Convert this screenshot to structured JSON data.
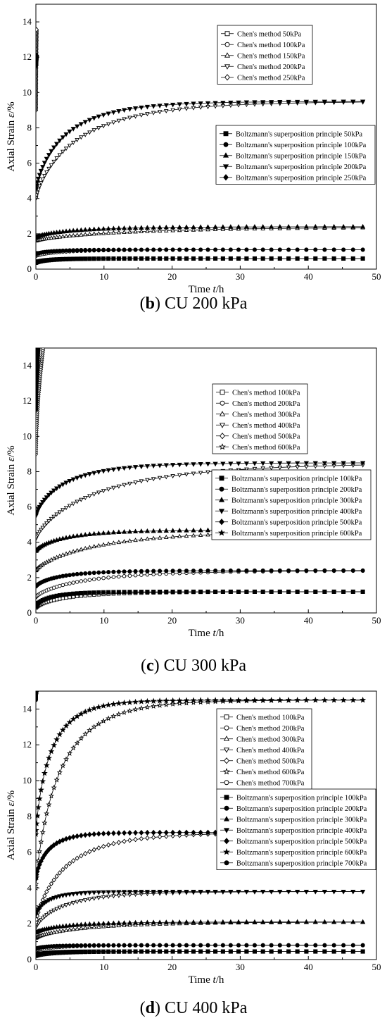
{
  "chart_data": [
    {
      "type": "line",
      "caption_letter": "b",
      "caption_rest": "CU 200 kPa",
      "xlabel_main": "Time ",
      "xlabel_italic": "t",
      "xlabel_unit": "/h",
      "ylabel_main": "Axial Strain  ",
      "ylabel_italic": "ε",
      "ylabel_unit": "/%",
      "xlim": [
        0,
        50
      ],
      "ylim": [
        0,
        15
      ],
      "xticks": [
        0,
        10,
        20,
        30,
        40,
        50
      ],
      "yticks": [
        0,
        2,
        4,
        6,
        8,
        10,
        12,
        14
      ],
      "legend_chen": [
        "Chen's method 50kPa",
        "Chen's method 100kPa",
        "Chen's method 150kPa",
        "Chen's method 200kPa",
        "Chen's method 250kPa"
      ],
      "legend_boltz": [
        "Boltzmann's superposition principle 50kPa",
        "Boltzmann's superposition principle 100kPa",
        "Boltzmann's superposition principle 150kPa",
        "Boltzmann's superposition principle 200kPa",
        "Boltzmann's superposition principle 250kPa"
      ],
      "series": [
        {
          "name": "Chen's method 50kPa",
          "marker": "square-open",
          "final": 0.6,
          "initial": 0.35,
          "rate": 0.5
        },
        {
          "name": "Chen's method 100kPa",
          "marker": "circle-open",
          "final": 1.1,
          "initial": 0.75,
          "rate": 0.35
        },
        {
          "name": "Chen's method 150kPa",
          "marker": "triangle-open",
          "final": 2.4,
          "initial": 1.6,
          "rate": 0.12
        },
        {
          "name": "Chen's method 200kPa",
          "marker": "tridown-open",
          "final": 9.5,
          "initial": 4.0,
          "rate": 0.22
        },
        {
          "name": "Chen's method 250kPa",
          "marker": "diamond-open",
          "final": 12.8,
          "initial": 9.0,
          "rate": 5,
          "ends_at": 0.1
        },
        {
          "name": "Boltzmann's superposition principle 50kPa",
          "marker": "square",
          "final": 0.6,
          "initial": 0.38,
          "rate": 0.6
        },
        {
          "name": "Boltzmann's superposition principle 100kPa",
          "marker": "circle",
          "final": 1.1,
          "initial": 0.85,
          "rate": 0.5
        },
        {
          "name": "Boltzmann's superposition principle 150kPa",
          "marker": "triangle",
          "final": 2.4,
          "initial": 1.8,
          "rate": 0.25
        },
        {
          "name": "Boltzmann's superposition principle 200kPa",
          "marker": "tridown",
          "final": 9.5,
          "initial": 4.5,
          "rate": 0.3
        },
        {
          "name": "Boltzmann's superposition principle 250kPa",
          "marker": "diamond",
          "final": 12.0,
          "initial": 11.5,
          "rate": 5,
          "ends_at": 0.1
        }
      ]
    },
    {
      "type": "line",
      "caption_letter": "c",
      "caption_rest": "CU 300 kPa",
      "xlabel_main": "Time ",
      "xlabel_italic": "t",
      "xlabel_unit": "/h",
      "ylabel_main": "Axial Strain  ",
      "ylabel_italic": "ε",
      "ylabel_unit": "/%",
      "xlim": [
        0,
        50
      ],
      "ylim": [
        0,
        15
      ],
      "xticks": [
        0,
        10,
        20,
        30,
        40,
        50
      ],
      "yticks": [
        0,
        2,
        4,
        6,
        8,
        10,
        12,
        14
      ],
      "legend_chen": [
        "Chen's method 100kPa",
        "Chen's method 200kPa",
        "Chen's method 300kPa",
        "Chen's method 400kPa",
        "Chen's method 500kPa",
        "Chen's method 600kPa"
      ],
      "legend_boltz": [
        "Boltzmann's superposition principle 100kPa",
        "Boltzmann's superposition principle 200kPa",
        "Boltzmann's superposition principle 300kPa",
        "Boltzmann's superposition principle 400kPa",
        "Boltzmann's superposition principle 500kPa",
        "Boltzmann's superposition principle 600kPa"
      ],
      "series": [
        {
          "name": "Chen's method 100kPa",
          "marker": "square-open",
          "final": 1.2,
          "initial": 0.3,
          "rate": 0.3
        },
        {
          "name": "Chen's method 200kPa",
          "marker": "circle-open",
          "final": 2.4,
          "initial": 0.9,
          "rate": 0.2
        },
        {
          "name": "Chen's method 300kPa",
          "marker": "triangle-open",
          "final": 4.7,
          "initial": 2.4,
          "rate": 0.16
        },
        {
          "name": "Chen's method 400kPa",
          "marker": "tridown-open",
          "final": 8.5,
          "initial": 4.2,
          "rate": 0.16
        },
        {
          "name": "Chen's method 500kPa",
          "marker": "diamond-open",
          "final": 15.0,
          "initial": 9.0,
          "rate": 1.5,
          "ends_at": 1.5
        },
        {
          "name": "Chen's method 600kPa",
          "marker": "star-open",
          "final": 15.0,
          "initial": 13.5,
          "rate": 2,
          "ends_at": 0.2
        },
        {
          "name": "Boltzmann's superposition principle 100kPa",
          "marker": "square",
          "final": 1.2,
          "initial": 0.4,
          "rate": 0.5
        },
        {
          "name": "Boltzmann's superposition principle 200kPa",
          "marker": "circle",
          "final": 2.4,
          "initial": 1.5,
          "rate": 0.35
        },
        {
          "name": "Boltzmann's superposition principle 300kPa",
          "marker": "triangle",
          "final": 4.7,
          "initial": 3.5,
          "rate": 0.3
        },
        {
          "name": "Boltzmann's superposition principle 400kPa",
          "marker": "tridown",
          "final": 8.5,
          "initial": 5.5,
          "rate": 0.3
        },
        {
          "name": "Boltzmann's superposition principle 500kPa",
          "marker": "diamond",
          "final": 15.0,
          "initial": 11.5,
          "rate": 2,
          "ends_at": 0.5
        },
        {
          "name": "Boltzmann's superposition principle 600kPa",
          "marker": "star",
          "final": 15.0,
          "initial": 14.0,
          "rate": 2,
          "ends_at": 0.2
        }
      ]
    },
    {
      "type": "line",
      "caption_letter": "d",
      "caption_rest": "CU 400 kPa",
      "xlabel_main": "Time ",
      "xlabel_italic": "t",
      "xlabel_unit": "/h",
      "ylabel_main": "Axial Strain  ",
      "ylabel_italic": "ε",
      "ylabel_unit": "/%",
      "xlim": [
        0,
        50
      ],
      "ylim": [
        0,
        15
      ],
      "xticks": [
        0,
        10,
        20,
        30,
        40,
        50
      ],
      "yticks": [
        0,
        2,
        4,
        6,
        8,
        10,
        12,
        14
      ],
      "legend_chen": [
        "Chen's method 100kPa",
        "Chen's method 200kPa",
        "Chen's method 300kPa",
        "Chen's method 400kPa",
        "Chen's method 500kPa",
        "Chen's method 600kPa",
        "Chen's method 700kPa"
      ],
      "legend_boltz": [
        "Boltzmann's superposition principle 100kPa",
        "Boltzmann's superposition principle 200kPa",
        "Boltzmann's superposition principle 300kPa",
        "Boltzmann's superposition principle 400kPa",
        "Boltzmann's superposition principle 500kPa",
        "Boltzmann's superposition principle 600kPa",
        "Boltzmann's superposition principle 700kPa"
      ],
      "series": [
        {
          "name": "Chen's method 100kPa",
          "marker": "square-open",
          "final": 0.45,
          "initial": 0.2,
          "rate": 0.4
        },
        {
          "name": "Chen's method 200kPa",
          "marker": "circle-open",
          "final": 0.8,
          "initial": 0.5,
          "rate": 0.4
        },
        {
          "name": "Chen's method 300kPa",
          "marker": "triangle-open",
          "final": 2.1,
          "initial": 1.2,
          "rate": 0.2
        },
        {
          "name": "Chen's method 400kPa",
          "marker": "tridown-open",
          "final": 3.8,
          "initial": 1.8,
          "rate": 0.3
        },
        {
          "name": "Chen's method 500kPa",
          "marker": "diamond-open",
          "final": 7.1,
          "initial": 2.0,
          "rate": 0.3
        },
        {
          "name": "Chen's method 600kPa",
          "marker": "star-open",
          "final": 14.5,
          "initial": 4.0,
          "rate": 0.35
        },
        {
          "name": "Chen's method 700kPa",
          "marker": "circle-open",
          "final": 15.0,
          "initial": 14.5,
          "rate": 2,
          "ends_at": 0.1
        },
        {
          "name": "Boltzmann's superposition principle 100kPa",
          "marker": "square",
          "final": 0.45,
          "initial": 0.25,
          "rate": 0.6
        },
        {
          "name": "Boltzmann's superposition principle 200kPa",
          "marker": "circle",
          "final": 0.8,
          "initial": 0.6,
          "rate": 0.6
        },
        {
          "name": "Boltzmann's superposition principle 300kPa",
          "marker": "triangle",
          "final": 2.1,
          "initial": 1.5,
          "rate": 0.3
        },
        {
          "name": "Boltzmann's superposition principle 400kPa",
          "marker": "tridown",
          "final": 3.8,
          "initial": 2.5,
          "rate": 0.6
        },
        {
          "name": "Boltzmann's superposition principle 500kPa",
          "marker": "diamond",
          "final": 7.1,
          "initial": 4.5,
          "rate": 0.6
        },
        {
          "name": "Boltzmann's superposition principle 600kPa",
          "marker": "star",
          "final": 14.5,
          "initial": 7.0,
          "rate": 0.5
        },
        {
          "name": "Boltzmann's superposition principle 700kPa",
          "marker": "circle",
          "final": 15.0,
          "initial": 14.8,
          "rate": 2,
          "ends_at": 0.1
        }
      ]
    }
  ]
}
